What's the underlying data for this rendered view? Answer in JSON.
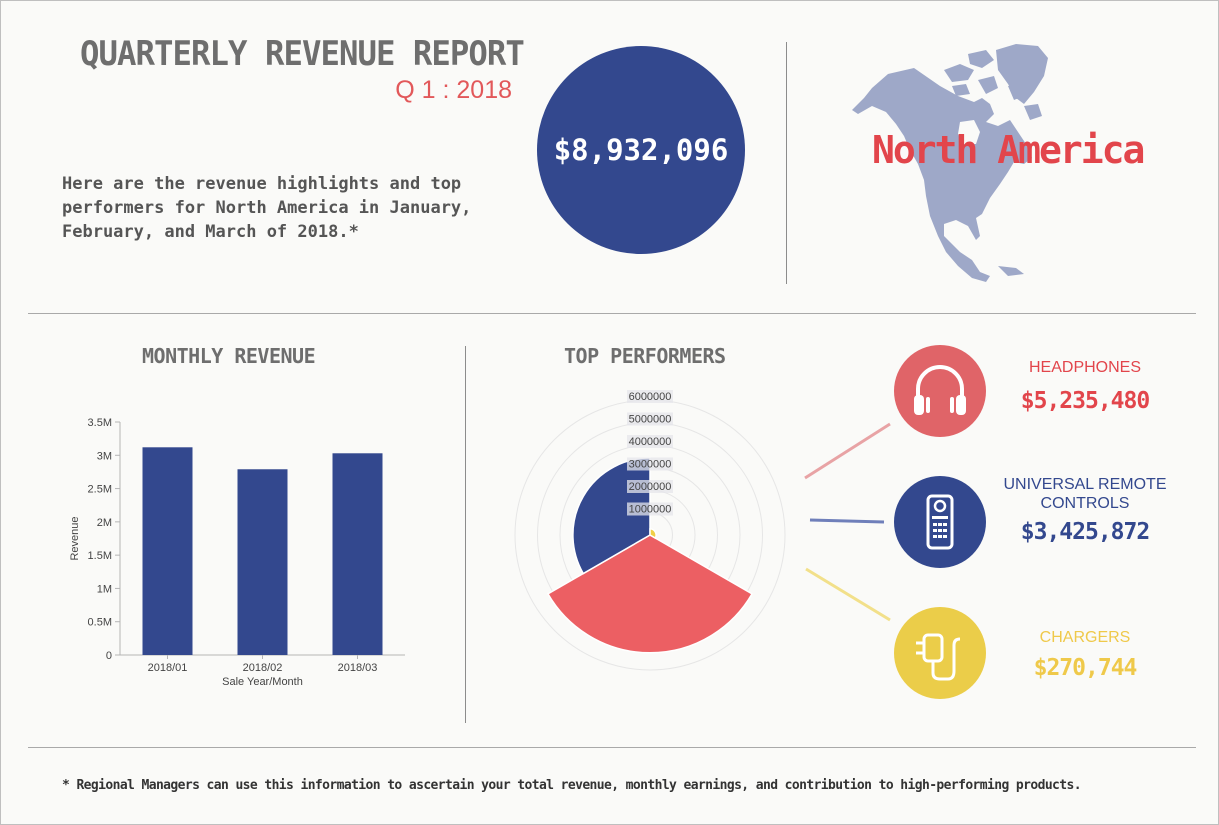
{
  "header": {
    "title": "QUARTERLY REVENUE REPORT",
    "subtitle": "Q 1 : 2018",
    "intro": "Here are the revenue highlights and top performers for North America in January, February, and March of 2018.*",
    "total_revenue": "$8,932,096",
    "region": "North America"
  },
  "colors": {
    "navy": "#33488e",
    "red": "#ec5f63",
    "red_dark": "#e2454b",
    "yellow": "#f0cf48",
    "map": "#9ea8c8",
    "grey_text": "#6e6e6e"
  },
  "monthly": {
    "title": "MONTHLY REVENUE"
  },
  "top": {
    "title": "TOP PERFORMERS"
  },
  "chart_data": [
    {
      "type": "bar",
      "title": "MONTHLY REVENUE",
      "categories": [
        "2018/01",
        "2018/02",
        "2018/03"
      ],
      "values": [
        3120000,
        2790000,
        3030000
      ],
      "xlabel": "Sale Year/Month",
      "ylabel": "Revenue",
      "ylim": [
        0,
        3500000
      ],
      "yticks": [
        0,
        500000,
        1000000,
        1500000,
        2000000,
        2500000,
        3000000,
        3500000
      ],
      "ytick_labels": [
        "0",
        "0.5M",
        "1M",
        "1.5M",
        "2M",
        "2.5M",
        "3M",
        "3.5M"
      ],
      "color": "#33488e",
      "grid": false
    },
    {
      "type": "pie",
      "variant": "polar-area",
      "title": "TOP PERFORMERS",
      "categories": [
        "HEADPHONES",
        "UNIVERSAL REMOTE CONTROLS",
        "CHARGERS"
      ],
      "values": [
        5235480,
        3425872,
        270744
      ],
      "value_labels": [
        "$5,235,480",
        "$3,425,872",
        "$270,744"
      ],
      "colors": [
        "#ec5f63",
        "#33488e",
        "#f0cf48"
      ],
      "rmax": 6000000,
      "rticks": [
        1000000,
        2000000,
        3000000,
        4000000,
        5000000,
        6000000
      ],
      "rtick_labels": [
        "1000000",
        "2000000",
        "3000000",
        "4000000",
        "5000000",
        "6000000"
      ]
    }
  ],
  "performers": [
    {
      "name": "HEADPHONES",
      "value": "$5,235,480",
      "icon": "headphones-icon",
      "color": "#e06468",
      "text_color": "#e2454b"
    },
    {
      "name": "UNIVERSAL REMOTE CONTROLS",
      "value": "$3,425,872",
      "icon": "remote-control-icon",
      "color": "#33488e",
      "text_color": "#33488e"
    },
    {
      "name": "CHARGERS",
      "value": "$270,744",
      "icon": "charger-icon",
      "color": "#ebcd49",
      "text_color": "#efc94a"
    }
  ],
  "footnote": "* Regional Managers can use this information to ascertain your total revenue, monthly earnings, and contribution to high-performing products."
}
